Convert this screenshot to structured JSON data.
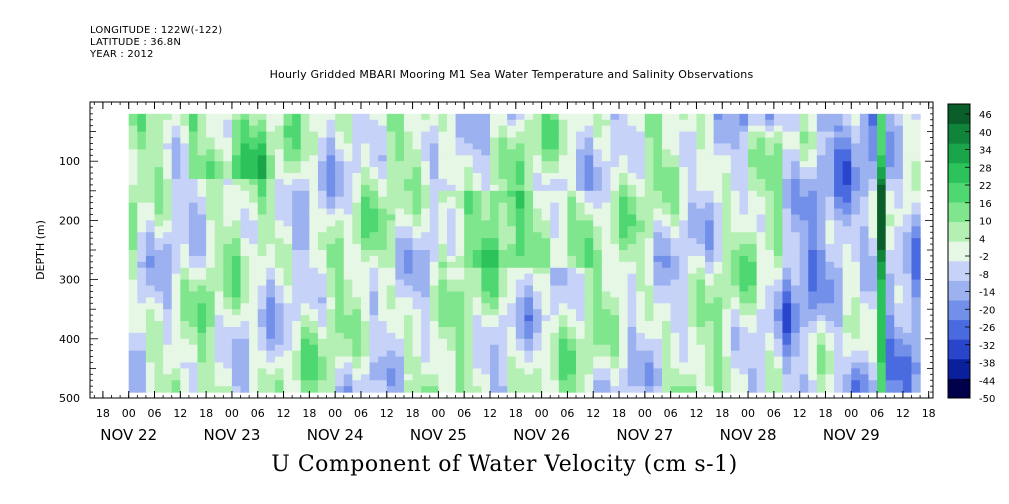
{
  "header": {
    "longitude": "LONGITUDE : 122W(-122)",
    "latitude": "LATITUDE : 36.8N",
    "year": "YEAR : 2012"
  },
  "chart_data": {
    "type": "heatmap",
    "title": "Hourly Gridded MBARI Mooring M1 Sea Water Temperature and Salinity Observations",
    "xlabel": "U Component of Water Velocity (cm s-1)",
    "ylabel": "DEPTH (m)",
    "y_axis": {
      "range": [
        500,
        0
      ],
      "ticks": [
        100,
        200,
        300,
        400,
        500
      ],
      "data_range": [
        20,
        485
      ]
    },
    "x_axis": {
      "hour_ticks": [
        "18",
        "00",
        "06",
        "12",
        "18",
        "00",
        "06",
        "12",
        "18",
        "00",
        "06",
        "12",
        "18",
        "00",
        "06",
        "12",
        "18",
        "00",
        "06",
        "12",
        "18",
        "00",
        "06",
        "12",
        "18",
        "00",
        "06",
        "12",
        "18",
        "00",
        "06",
        "12",
        "18"
      ],
      "day_labels": [
        "NOV 22",
        "NOV 23",
        "NOV 24",
        "NOV 25",
        "NOV 26",
        "NOV 27",
        "NOV 28",
        "NOV 29"
      ],
      "range_hours_from_nov22_00": [
        -9,
        187
      ],
      "data_start_hour": 0,
      "data_end_hour": 184
    },
    "colorbar": {
      "ticks": [
        "46",
        "40",
        "34",
        "28",
        "22",
        "16",
        "10",
        "4",
        "-2",
        "-8",
        "-14",
        "-20",
        "-26",
        "-32",
        "-38",
        "-44",
        "-50"
      ],
      "min": -50,
      "max": 49,
      "colors": [
        "#00004b",
        "#0a1f9c",
        "#2845cc",
        "#4a6ae0",
        "#7290ea",
        "#9cb1ef",
        "#c6d2f7",
        "#e6f7e6",
        "#b4f0b4",
        "#80e68e",
        "#4fd872",
        "#2cc45a",
        "#1aa54a",
        "#10843a",
        "#0a5e2a"
      ]
    },
    "annotations": [
      "Strong positive (green) bands near 0-100 m on Nov 23 and near 200 m on Nov 25-26; negative (blue) bands dominate Nov 28-29 with a narrow strong positive column at ~06 Nov 29"
    ]
  }
}
